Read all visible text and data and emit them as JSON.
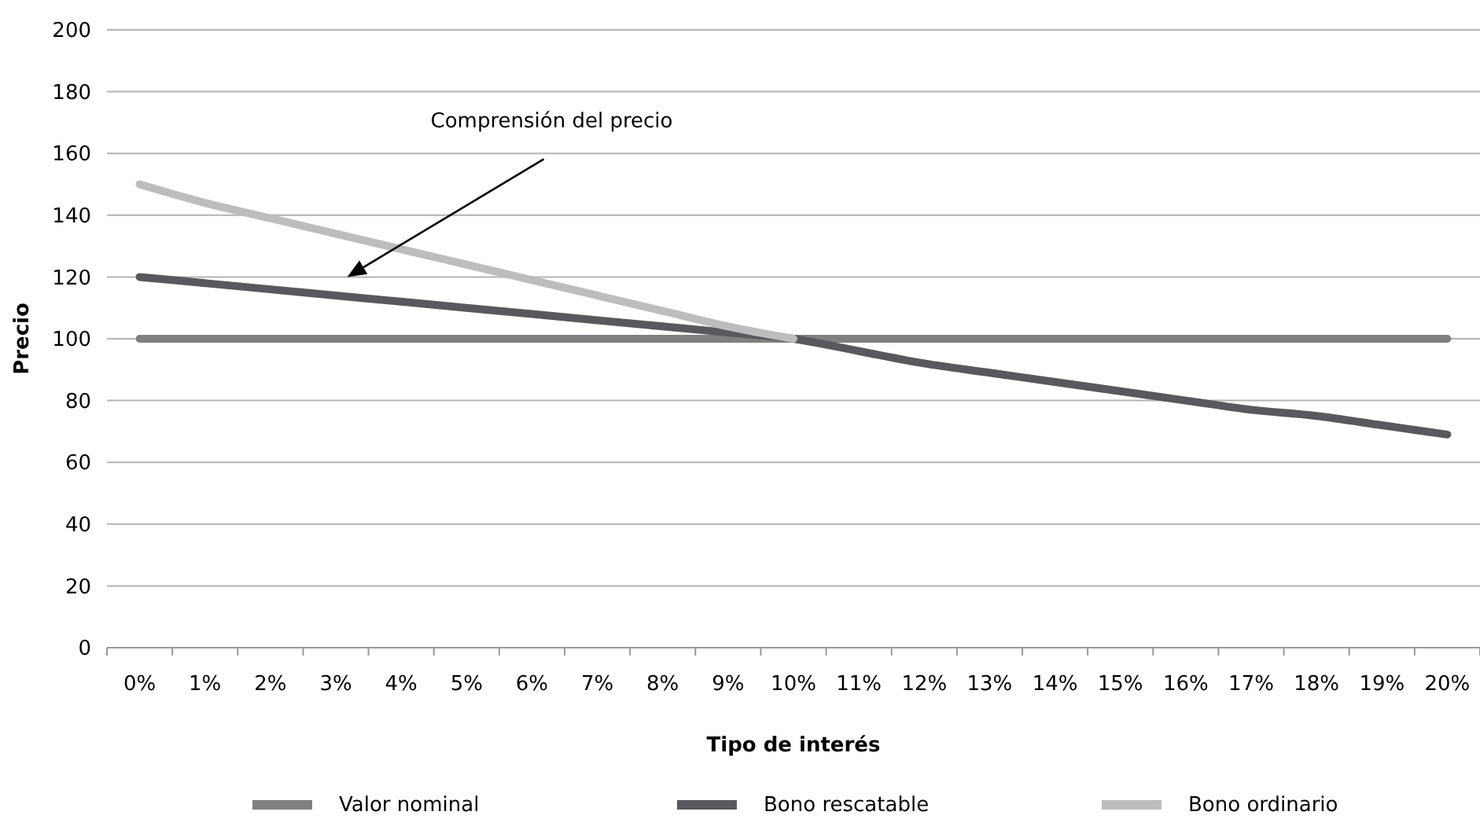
{
  "chart_data": {
    "type": "line",
    "xlabel": "Tipo de interés",
    "ylabel": "Precio",
    "categories": [
      "0%",
      "1%",
      "2%",
      "3%",
      "4%",
      "5%",
      "6%",
      "7%",
      "8%",
      "9%",
      "10%",
      "11%",
      "12%",
      "13%",
      "14%",
      "15%",
      "16%",
      "17%",
      "18%",
      "19%",
      "20%"
    ],
    "series": [
      {
        "name": "Valor nominal",
        "color": "#808080",
        "values": [
          100,
          100,
          100,
          100,
          100,
          100,
          100,
          100,
          100,
          100,
          100,
          100,
          100,
          100,
          100,
          100,
          100,
          100,
          100,
          100,
          100
        ]
      },
      {
        "name": "Bono rescatable",
        "color": "#58585e",
        "values": [
          120,
          118,
          116,
          114,
          112,
          110,
          108,
          106,
          104,
          102,
          100,
          96,
          92,
          89,
          86,
          83,
          80,
          77,
          75,
          72,
          69
        ]
      },
      {
        "name": "Bono ordinario",
        "color": "#bdbdbd",
        "values": [
          150,
          144,
          139,
          134,
          129,
          124,
          119,
          114,
          109,
          104,
          100,
          null,
          null,
          null,
          null,
          null,
          null,
          null,
          null,
          null,
          null
        ]
      }
    ],
    "ylim": [
      0,
      200
    ],
    "yticks": [
      0,
      20,
      40,
      60,
      80,
      100,
      120,
      140,
      160,
      180,
      200
    ],
    "grid": "y",
    "legend": "bottom",
    "line_style": "solid",
    "annotations": [
      "Comprensión del precio"
    ]
  }
}
